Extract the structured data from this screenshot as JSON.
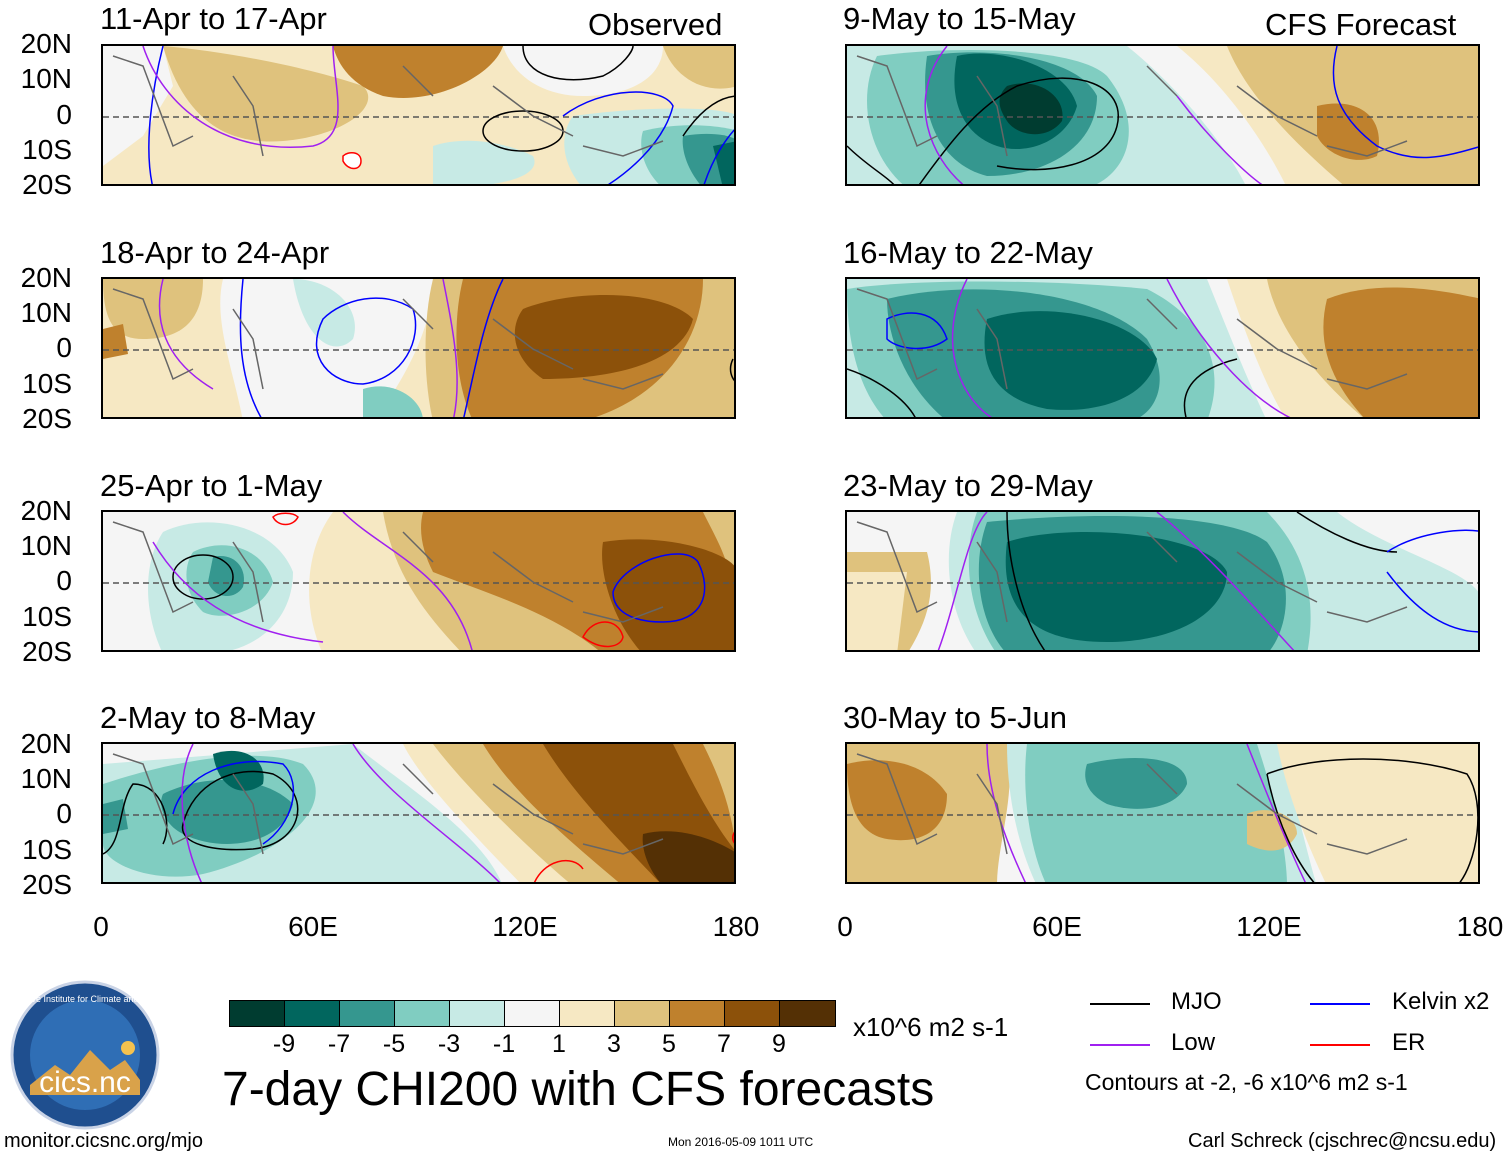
{
  "columns": {
    "left_header": "Observed",
    "right_header": "CFS Forecast"
  },
  "panels": [
    {
      "title": "11-Apr to 17-Apr",
      "side": "left"
    },
    {
      "title": "18-Apr to 24-Apr",
      "side": "left"
    },
    {
      "title": "25-Apr to 1-May",
      "side": "left"
    },
    {
      "title": "2-May to 8-May",
      "side": "left"
    },
    {
      "title": "9-May to 15-May",
      "side": "right"
    },
    {
      "title": "16-May to 22-May",
      "side": "right"
    },
    {
      "title": "23-May to 29-May",
      "side": "right"
    },
    {
      "title": "30-May to 5-Jun",
      "side": "right"
    }
  ],
  "lat_labels": [
    "20N",
    "10N",
    "0",
    "10S",
    "20S"
  ],
  "lon_labels": [
    "0",
    "60E",
    "120E",
    "180"
  ],
  "colorbar": {
    "colors": [
      "#003c30",
      "#01665e",
      "#35978f",
      "#80cdc1",
      "#c7eae5",
      "#f5f5f5",
      "#f6e8c3",
      "#dfc27d",
      "#bf812d",
      "#8c510a",
      "#543005"
    ],
    "labels": [
      "-9",
      "-7",
      "-5",
      "-3",
      "-1",
      "1",
      "3",
      "5",
      "7",
      "9"
    ],
    "units": "x10^6 m2 s-1"
  },
  "main_title": "7-day CHI200 with CFS forecasts",
  "legend": {
    "items": [
      {
        "label": "MJO",
        "color": "#000000"
      },
      {
        "label": "Kelvin x2",
        "color": "#0000ff"
      },
      {
        "label": "Low",
        "color": "#a020f0"
      },
      {
        "label": "ER",
        "color": "#ff0000"
      }
    ],
    "note": "Contours at -2, -6 x10^6 m2 s-1"
  },
  "logo": {
    "text": "cics.nc",
    "ring_text": "Cooperative Institute for Climate and Satellites"
  },
  "footer": {
    "url": "monitor.cicsnc.org/mjo",
    "timestamp": "Mon 2016-05-09 1011 UTC",
    "author": "Carl Schreck (cjschrec@ncsu.edu)"
  }
}
